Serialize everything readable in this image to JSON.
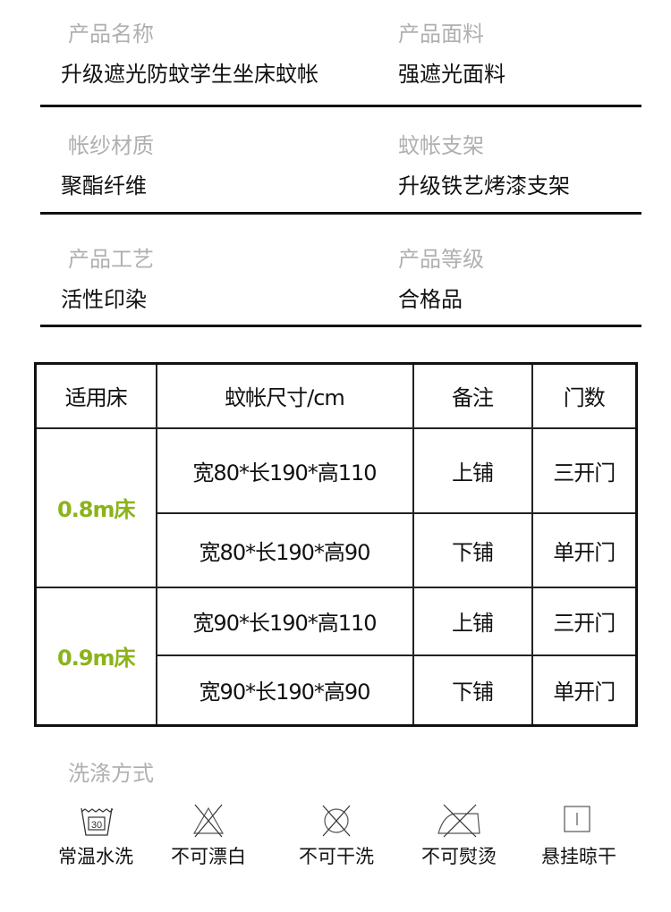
{
  "specs": [
    {
      "label": "产品名称",
      "value": "升级遮光防蚊学生坐床蚊帐"
    },
    {
      "label": "产品面料",
      "value": "强遮光面料"
    },
    {
      "label": "帐纱材质",
      "value": "聚酯纤维"
    },
    {
      "label": "蚊帐支架",
      "value": "升级铁艺烤漆支架"
    },
    {
      "label": "产品工艺",
      "value": "活性印染"
    },
    {
      "label": "产品等级",
      "value": "合格品"
    }
  ],
  "table": {
    "headers": [
      "适用床",
      "蚊帐尺寸/cm",
      "备注",
      "门数"
    ],
    "groups": [
      {
        "bed": "0.8m床",
        "rows": [
          [
            "宽80*长190*高110",
            "上铺",
            "三开门"
          ],
          [
            "宽80*长190*高90",
            "下铺",
            "单开门"
          ]
        ]
      },
      {
        "bed": "0.9m床",
        "rows": [
          [
            "宽90*长190*高110",
            "上铺",
            "三开门"
          ],
          [
            "宽90*长190*高90",
            "下铺",
            "单开门"
          ]
        ]
      }
    ],
    "accent": "#8cb31a"
  },
  "washing": {
    "title": "洗涤方式",
    "items": [
      {
        "icon": "wash-30-icon",
        "temp": "30",
        "label": "常温水洗"
      },
      {
        "icon": "no-bleach-icon",
        "label": "不可漂白"
      },
      {
        "icon": "no-dry-clean-icon",
        "label": "不可干洗"
      },
      {
        "icon": "no-iron-icon",
        "label": "不可熨烫"
      },
      {
        "icon": "hang-dry-icon",
        "label": "悬挂晾干"
      }
    ]
  }
}
